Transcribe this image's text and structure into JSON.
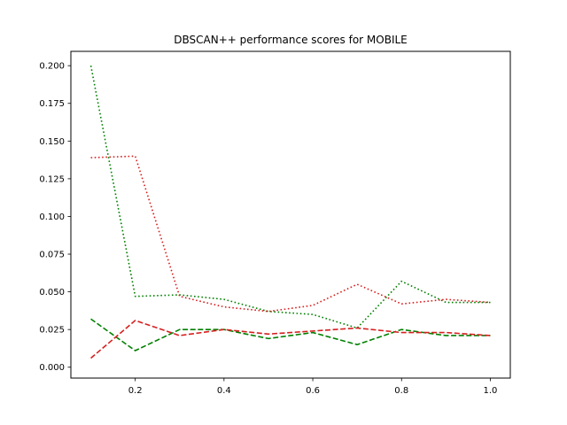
{
  "chart_data": {
    "type": "line",
    "title": "DBSCAN++ performance scores for MOBILE",
    "xlabel": "",
    "ylabel": "",
    "xlim": [
      0.055,
      1.045
    ],
    "ylim": [
      -0.0072,
      0.2095
    ],
    "xticks": [
      0.2,
      0.4,
      0.6,
      0.8,
      1.0
    ],
    "xtick_labels": [
      "0.2",
      "0.4",
      "0.6",
      "0.8",
      "1.0"
    ],
    "yticks": [
      0.0,
      0.025,
      0.05,
      0.075,
      0.1,
      0.125,
      0.15,
      0.175,
      0.2
    ],
    "ytick_labels": [
      "0.000",
      "0.025",
      "0.050",
      "0.075",
      "0.100",
      "0.125",
      "0.150",
      "0.175",
      "0.200"
    ],
    "grid": false,
    "legend": false,
    "x": [
      0.1,
      0.2,
      0.3,
      0.4,
      0.5,
      0.6,
      0.7,
      0.8,
      0.9,
      1.0
    ],
    "series": [
      {
        "color": "#008000",
        "style": "dotted",
        "values": [
          0.2,
          0.047,
          0.048,
          0.045,
          0.037,
          0.035,
          0.026,
          0.057,
          0.043,
          0.043
        ]
      },
      {
        "color": "#d62020",
        "style": "dotted",
        "values": [
          0.139,
          0.14,
          0.047,
          0.04,
          0.037,
          0.041,
          0.055,
          0.042,
          0.045,
          0.043
        ]
      },
      {
        "color": "#008000",
        "style": "dashed",
        "values": [
          0.032,
          0.011,
          0.025,
          0.025,
          0.019,
          0.023,
          0.015,
          0.025,
          0.021,
          0.021
        ]
      },
      {
        "color": "#d62020",
        "style": "dashed",
        "values": [
          0.006,
          0.031,
          0.021,
          0.025,
          0.022,
          0.024,
          0.026,
          0.023,
          0.023,
          0.021
        ]
      }
    ]
  }
}
